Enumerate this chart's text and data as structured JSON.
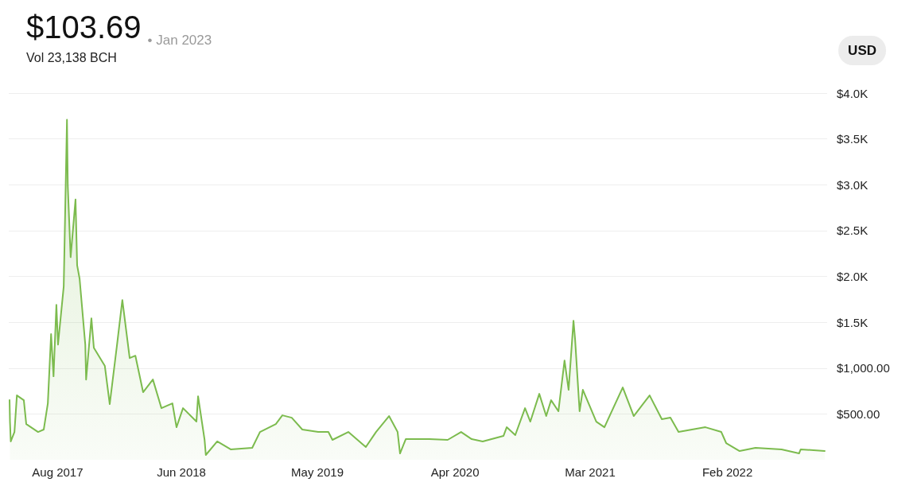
{
  "chart_data": {
    "type": "area",
    "title": "$103.69",
    "subtitle": "• Jan 2023",
    "annotations": [
      "Vol 23,138 BCH",
      "USD"
    ],
    "color": "#7cbb4e",
    "grid": "y",
    "marker": "none",
    "line_style": "solid",
    "xlim": [
      "2017-04-03",
      "2022-10-04"
    ],
    "xticks": [
      {
        "value": "2017-08-01",
        "label": "Aug 2017"
      },
      {
        "value": "2018-06-01",
        "label": "Jun 2018"
      },
      {
        "value": "2019-05-01",
        "label": "May 2019"
      },
      {
        "value": "2020-04-03",
        "label": "Apr 2020"
      },
      {
        "value": "2021-03-01",
        "label": "Mar 2021"
      },
      {
        "value": "2022-02-01",
        "label": "Feb 2022"
      }
    ],
    "ylim": [
      0,
      4000
    ],
    "yticks": [
      {
        "value": 500,
        "label": "$500.00"
      },
      {
        "value": 1000,
        "label": "$1,000.00"
      },
      {
        "value": 1500,
        "label": "$1.5K"
      },
      {
        "value": 2000,
        "label": "$2.0K"
      },
      {
        "value": 2500,
        "label": "$2.5K"
      },
      {
        "value": 3000,
        "label": "$3.0K"
      },
      {
        "value": 3500,
        "label": "$3.5K"
      },
      {
        "value": 4000,
        "label": "$4.0K"
      }
    ],
    "x": [
      "2017-04-05",
      "2017-04-06",
      "2017-04-08",
      "2017-04-17",
      "2017-04-23",
      "2017-05-10",
      "2017-05-16",
      "2017-06-14",
      "2017-06-28",
      "2017-07-08",
      "2017-07-16",
      "2017-07-22",
      "2017-07-29",
      "2017-08-02",
      "2017-08-16",
      "2017-08-24",
      "2017-08-26",
      "2017-09-02",
      "2017-09-14",
      "2017-09-18",
      "2017-09-24",
      "2017-10-08",
      "2017-10-10",
      "2017-10-23",
      "2017-10-29",
      "2017-11-25",
      "2017-12-07",
      "2017-12-25",
      "2018-01-07",
      "2018-01-25",
      "2018-02-08",
      "2018-02-27",
      "2018-03-23",
      "2018-04-13",
      "2018-05-10",
      "2018-05-20",
      "2018-06-05",
      "2018-07-08",
      "2018-07-12",
      "2018-07-28",
      "2018-07-31",
      "2018-08-28",
      "2018-09-30",
      "2018-11-22",
      "2018-12-11",
      "2019-01-19",
      "2019-02-04",
      "2019-02-27",
      "2019-03-25",
      "2019-05-03",
      "2019-05-28",
      "2019-06-07",
      "2019-07-16",
      "2019-08-28",
      "2019-09-22",
      "2019-10-24",
      "2019-11-14",
      "2019-11-20",
      "2019-12-04",
      "2020-01-31",
      "2020-03-16",
      "2020-04-18",
      "2020-05-14",
      "2020-06-10",
      "2020-07-31",
      "2020-08-08",
      "2020-08-29",
      "2020-09-22",
      "2020-10-05",
      "2020-10-27",
      "2020-11-13",
      "2020-11-25",
      "2020-12-13",
      "2020-12-28",
      "2021-01-07",
      "2021-01-19",
      "2021-01-23",
      "2021-02-03",
      "2021-02-11",
      "2021-03-16",
      "2021-04-05",
      "2021-05-20",
      "2021-06-16",
      "2021-07-25",
      "2021-08-24",
      "2021-09-14",
      "2021-10-04",
      "2021-12-09",
      "2022-01-17",
      "2022-01-29",
      "2022-03-03",
      "2022-04-11",
      "2022-06-14",
      "2022-07-27",
      "2022-07-31",
      "2022-09-28"
    ],
    "values": [
      650,
      416,
      200,
      303,
      702,
      650,
      390,
      303,
      330,
      615,
      1370,
      910,
      1690,
      1256,
      1890,
      3710,
      2990,
      2210,
      2840,
      2120,
      1976,
      1256,
      875,
      1543,
      1222,
      1023,
      607,
      1256,
      1742,
      1109,
      1135,
      737,
      875,
      563,
      615,
      355,
      563,
      416,
      693,
      217,
      52,
      200,
      113,
      130,
      303,
      390,
      485,
      459,
      330,
      303,
      303,
      217,
      303,
      139,
      303,
      477,
      303,
      69,
      225,
      225,
      217,
      303,
      225,
      200,
      260,
      355,
      269,
      563,
      416,
      719,
      477,
      650,
      529,
      1083,
      763,
      1517,
      1309,
      529,
      763,
      416,
      355,
      789,
      477,
      702,
      442,
      459,
      303,
      355,
      303,
      182,
      95,
      130,
      113,
      69,
      113,
      95
    ]
  }
}
